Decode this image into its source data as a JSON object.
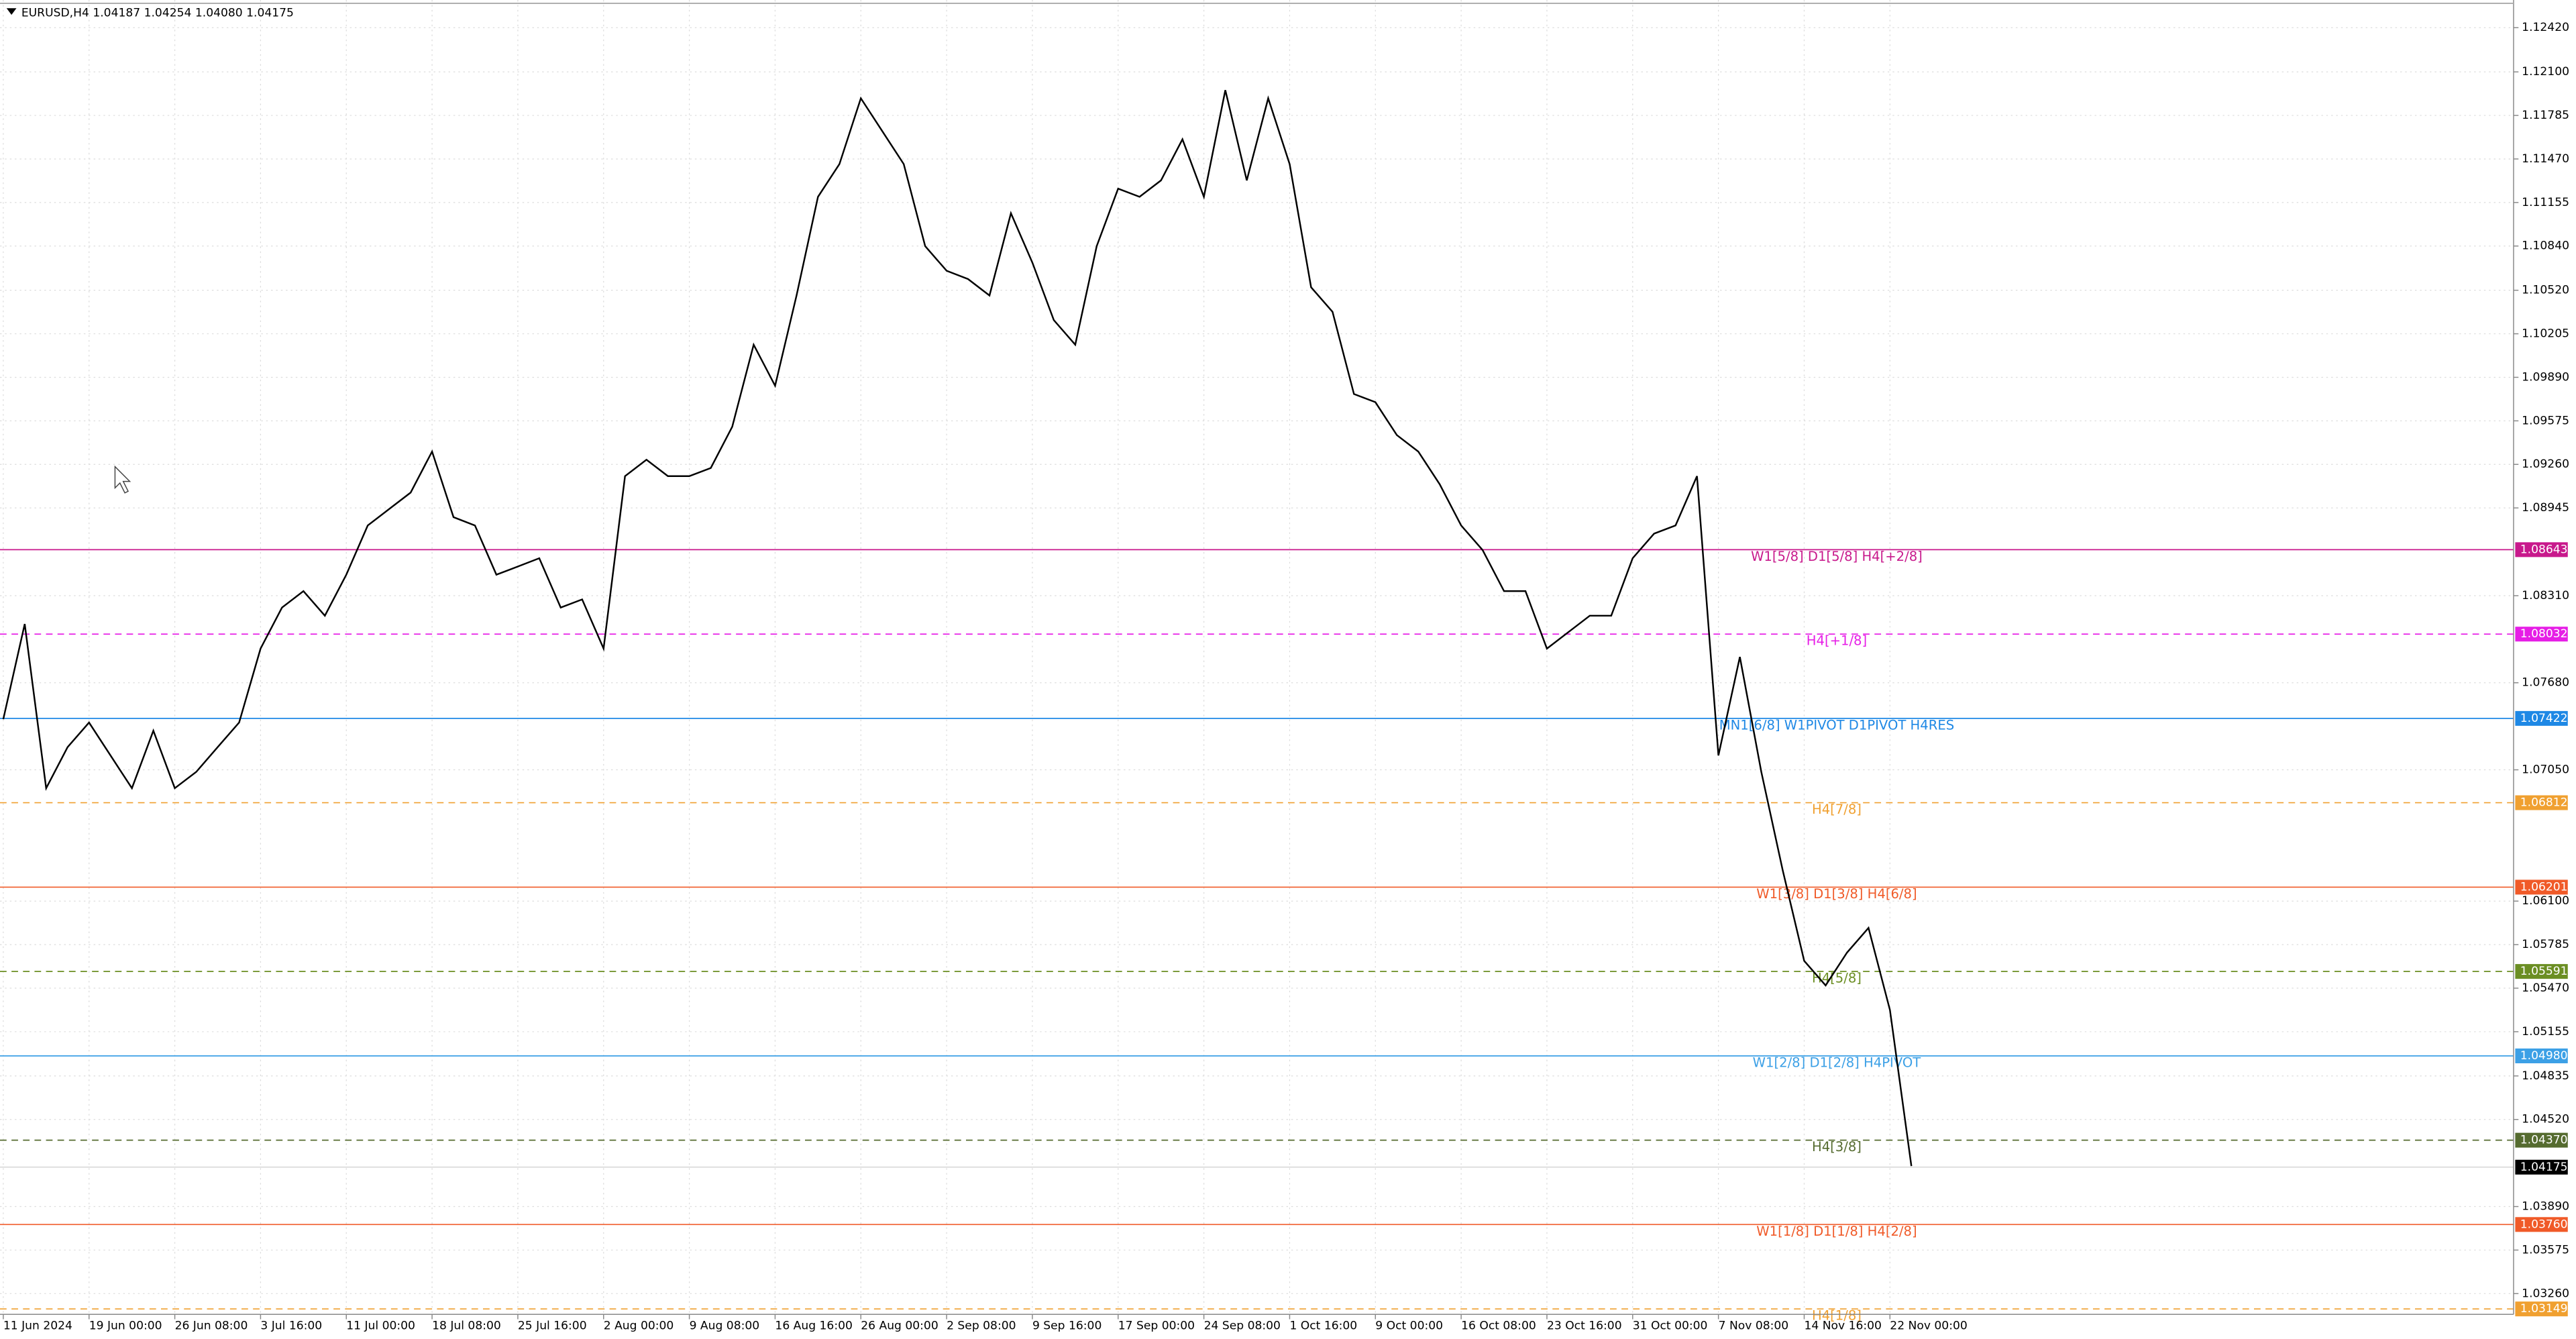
{
  "chart_data": {
    "type": "line",
    "title": "EURUSD,H4  1.04187 1.04254 1.04080 1.04175",
    "categories": [
      "11 Jun 2024",
      null,
      null,
      null,
      "19 Jun 00:00",
      null,
      null,
      null,
      "26 Jun 08:00",
      null,
      null,
      null,
      "3 Jul 16:00",
      null,
      null,
      null,
      "11 Jul 00:00",
      null,
      null,
      null,
      "18 Jul 08:00",
      null,
      null,
      null,
      "25 Jul 16:00",
      null,
      null,
      null,
      "2 Aug 00:00",
      null,
      null,
      null,
      "9 Aug 08:00",
      null,
      null,
      null,
      "16 Aug 16:00",
      null,
      null,
      null,
      "26 Aug 00:00",
      null,
      null,
      null,
      "2 Sep 08:00",
      null,
      null,
      null,
      "9 Sep 16:00",
      null,
      null,
      null,
      "17 Sep 00:00",
      null,
      null,
      null,
      "24 Sep 08:00",
      null,
      null,
      null,
      "1 Oct 16:00",
      null,
      null,
      null,
      "9 Oct 00:00",
      null,
      null,
      null,
      "16 Oct 08:00",
      null,
      null,
      null,
      "23 Oct 16:00",
      null,
      null,
      null,
      "31 Oct 00:00",
      null,
      null,
      null,
      "7 Nov 08:00",
      null,
      null,
      null,
      "14 Nov 16:00",
      null,
      null,
      null,
      "22 Nov 00:00",
      null
    ],
    "series": [
      {
        "name": "EURUSD",
        "color": "#000000",
        "values": [
          1.07416,
          1.08105,
          1.06917,
          1.07214,
          1.07392,
          1.07154,
          1.06917,
          1.07333,
          1.06917,
          1.07035,
          1.07214,
          1.07392,
          1.07927,
          1.08224,
          1.08343,
          1.08165,
          1.08462,
          1.08818,
          1.08937,
          1.09056,
          1.09353,
          1.08878,
          1.08818,
          1.08462,
          1.08521,
          1.08581,
          1.08224,
          1.08283,
          1.07927,
          1.09175,
          1.09294,
          1.09175,
          1.09175,
          1.09234,
          1.09532,
          1.10126,
          1.09829,
          1.10482,
          1.11196,
          1.11433,
          1.11909,
          1.11671,
          1.11433,
          1.10839,
          1.10661,
          1.10601,
          1.10482,
          1.11077,
          1.1072,
          1.10304,
          1.10126,
          1.10839,
          1.11255,
          1.11196,
          1.11315,
          1.11612,
          1.11196,
          1.11968,
          1.11315,
          1.11909,
          1.11433,
          1.10542,
          1.10364,
          1.09769,
          1.0971,
          1.09472,
          1.09353,
          1.09116,
          1.08818,
          1.0864,
          1.08343,
          1.08343,
          1.07927,
          1.08046,
          1.08165,
          1.08165,
          1.08581,
          1.08759,
          1.08818,
          1.09175,
          1.07154,
          1.07867,
          1.07035,
          1.06322,
          1.05668,
          1.0549,
          1.05728,
          1.05906,
          1.05312,
          1.04183
        ]
      }
    ],
    "ylim": [
      1.0311,
      1.1262
    ],
    "yticks": [
      {
        "value": 1.1242,
        "label": "1.12420"
      },
      {
        "value": 1.121,
        "label": "1.12100"
      },
      {
        "value": 1.11785,
        "label": "1.11785"
      },
      {
        "value": 1.1147,
        "label": "1.11470"
      },
      {
        "value": 1.11155,
        "label": "1.11155"
      },
      {
        "value": 1.1084,
        "label": "1.10840"
      },
      {
        "value": 1.1052,
        "label": "1.10520"
      },
      {
        "value": 1.10205,
        "label": "1.10205"
      },
      {
        "value": 1.0989,
        "label": "1.09890"
      },
      {
        "value": 1.09575,
        "label": "1.09575"
      },
      {
        "value": 1.0926,
        "label": "1.09260"
      },
      {
        "value": 1.08945,
        "label": "1.08945"
      },
      {
        "value": 1.0831,
        "label": "1.08310"
      },
      {
        "value": 1.0768,
        "label": "1.07680"
      },
      {
        "value": 1.0705,
        "label": "1.07050"
      },
      {
        "value": 1.061,
        "label": "1.06100"
      },
      {
        "value": 1.05785,
        "label": "1.05785"
      },
      {
        "value": 1.0547,
        "label": "1.05470"
      },
      {
        "value": 1.05155,
        "label": "1.05155"
      },
      {
        "value": 1.04835,
        "label": "1.04835"
      },
      {
        "value": 1.0452,
        "label": "1.04520"
      },
      {
        "value": 1.0389,
        "label": "1.03890"
      },
      {
        "value": 1.03575,
        "label": "1.03575"
      },
      {
        "value": 1.0326,
        "label": "1.03260"
      }
    ],
    "grid": true,
    "levels": [
      {
        "value": 1.08643,
        "label": "1.08643",
        "text": "W1[5/8] D1[5/8] H4[+2/8]",
        "color": "#c8198c",
        "dashed": false
      },
      {
        "value": 1.08032,
        "label": "1.08032",
        "text": "H4[+1/8]",
        "color": "#e61ee6",
        "dashed": true
      },
      {
        "value": 1.07422,
        "label": "1.07422",
        "text": "MN1[6/8] W1PIVOT D1PIVOT H4RES",
        "color": "#1e88e5",
        "dashed": false
      },
      {
        "value": 1.06812,
        "label": "1.06812",
        "text": "H4[7/8]",
        "color": "#f0a030",
        "dashed": true
      },
      {
        "value": 1.06201,
        "label": "1.06201",
        "text": "W1[3/8] D1[3/8] H4[6/8]",
        "color": "#f05a28",
        "dashed": false
      },
      {
        "value": 1.05591,
        "label": "1.05591",
        "text": "H4[5/8]",
        "color": "#6b8e23",
        "dashed": true
      },
      {
        "value": 1.0498,
        "label": "1.04980",
        "text": "W1[2/8] D1[2/8] H4PIVOT",
        "color": "#3ca0e6",
        "dashed": false
      },
      {
        "value": 1.0437,
        "label": "1.04370",
        "text": "H4[3/8]",
        "color": "#556b2f",
        "dashed": true
      },
      {
        "value": 1.0376,
        "label": "1.03760",
        "text": "W1[1/8] D1[1/8] H4[2/8]",
        "color": "#f05a28",
        "dashed": false
      },
      {
        "value": 1.03149,
        "label": "1.03149",
        "text": "H4[1/8]",
        "color": "#f0a030",
        "dashed": true
      }
    ],
    "current": {
      "value": 1.04175,
      "label": "1.04175",
      "color": "#000000"
    }
  }
}
